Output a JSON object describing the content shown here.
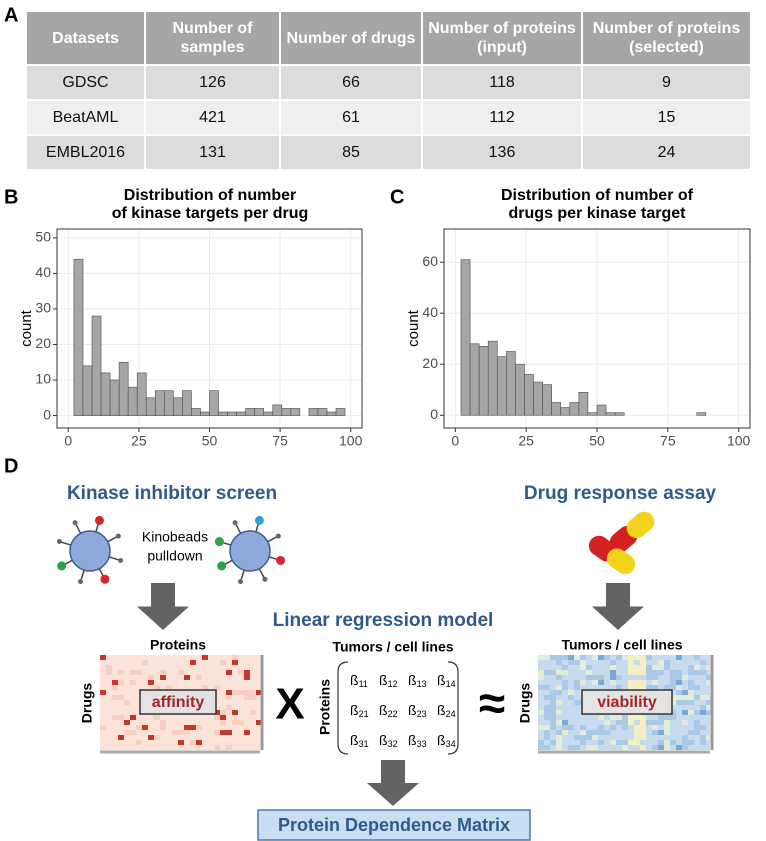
{
  "table": {
    "panel": "A",
    "columns": [
      "Datasets",
      "Number of samples",
      "Number of drugs",
      "Number of proteins (input)",
      "Number of proteins (selected)"
    ],
    "rows": [
      [
        "GDSC",
        "126",
        "66",
        "118",
        "9"
      ],
      [
        "BeatAML",
        "421",
        "61",
        "112",
        "15"
      ],
      [
        "EMBL2016",
        "131",
        "85",
        "136",
        "24"
      ]
    ]
  },
  "chart_data": [
    {
      "type": "histogram",
      "panel": "B",
      "title": [
        "Distribution of number",
        "of kinase targets per drug"
      ],
      "y_label": "count",
      "bins": [
        2,
        5.2,
        8.4,
        11.6,
        14.8,
        18,
        21.2,
        24.4,
        27.6,
        30.8,
        34,
        37.2,
        40.4,
        43.6,
        46.8,
        50,
        53.2,
        56.4,
        59.6,
        62.8,
        66,
        69.2,
        72.4,
        75.6,
        78.8,
        82,
        85.2,
        88.4,
        91.6,
        94.8,
        98
      ],
      "counts": [
        44,
        14,
        28,
        12,
        10,
        15,
        8,
        12,
        5,
        7,
        7,
        5,
        7,
        2,
        1,
        7,
        1,
        1,
        1,
        2,
        2,
        1,
        3,
        2,
        2,
        0,
        2,
        2,
        1,
        2
      ],
      "color": "#a6a6a6",
      "xlim": [
        -4,
        104
      ],
      "xticks": [
        0,
        25,
        50,
        75,
        100
      ],
      "ylim": [
        -3.5,
        52.5
      ],
      "yticks": [
        0,
        10,
        20,
        30,
        40,
        50
      ],
      "grid": true
    },
    {
      "type": "histogram",
      "panel": "C",
      "title": [
        "Distribution of number of",
        "drugs per kinase target"
      ],
      "y_label": "count",
      "bins": [
        2,
        5.2,
        8.4,
        11.6,
        14.8,
        18,
        21.2,
        24.4,
        27.6,
        30.8,
        34,
        37.2,
        40.4,
        43.6,
        46.8,
        50,
        53.2,
        56.4,
        59.6,
        62.8,
        66,
        69.2,
        72.4,
        75.6,
        78.8,
        82,
        85.2,
        88.4,
        91.6,
        94.8,
        98
      ],
      "counts": [
        61,
        28,
        27,
        29,
        23,
        25,
        20,
        16,
        13,
        12,
        5,
        3,
        5,
        9,
        1,
        4,
        1,
        1,
        0,
        0,
        0,
        0,
        0,
        0,
        0,
        0,
        1,
        0,
        0,
        0
      ],
      "color": "#a6a6a6",
      "xlim": [
        -4,
        104
      ],
      "xticks": [
        0,
        25,
        50,
        75,
        100
      ],
      "ylim": [
        -5,
        73
      ],
      "yticks": [
        0,
        20,
        40,
        60
      ],
      "grid": true
    }
  ],
  "diagram": {
    "panel": "D",
    "left_title": "Kinase inhibitor screen",
    "kinobeads_label": [
      "Kinobeads",
      "pulldown"
    ],
    "right_title": "Drug response assay",
    "model_title": "Linear regression model",
    "left_matrix": {
      "col_label": "Proteins",
      "row_label": "Drugs",
      "content": "affinity"
    },
    "operator_times": "X",
    "middle_matrix": {
      "col_label": "Tumors / cell lines",
      "row_label": "Proteins",
      "symbol": "ß",
      "indices": [
        [
          "11",
          "12",
          "13",
          "14"
        ],
        [
          "21",
          "22",
          "23",
          "24"
        ],
        [
          "31",
          "32",
          "33",
          "34"
        ]
      ]
    },
    "operator_approx": "≈",
    "right_matrix": {
      "col_label": "Tumors / cell lines",
      "row_label": "Drugs",
      "content": "viability"
    },
    "output": "Protein Dependence Matrix"
  }
}
